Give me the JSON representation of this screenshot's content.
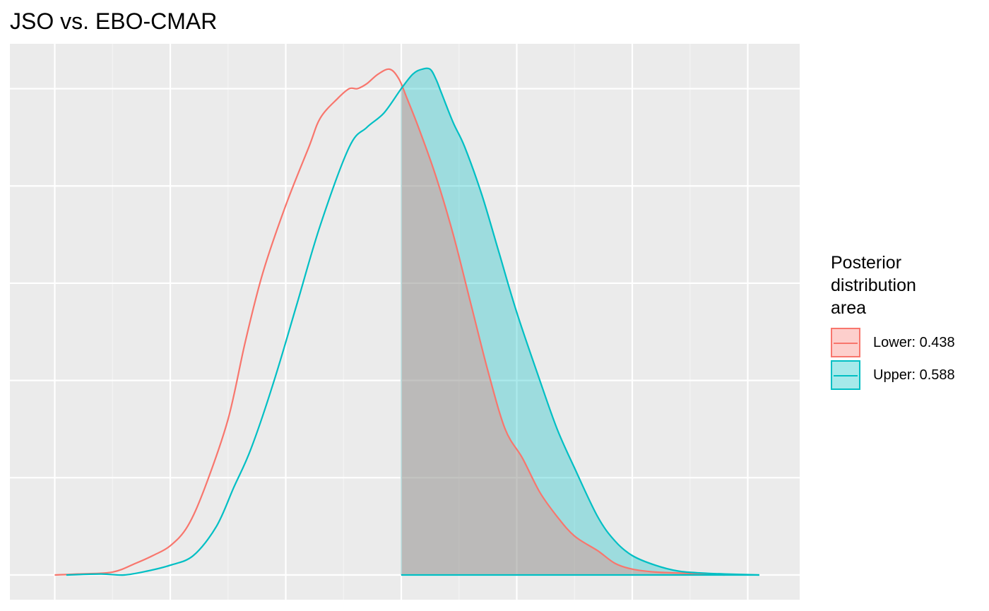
{
  "chart_data": {
    "type": "area",
    "title": "JSO vs. EBO-CMAR",
    "xlabel": "",
    "ylabel": "",
    "x_tick_labels": [],
    "y_tick_labels": [],
    "grid": true,
    "legend": {
      "title_lines": [
        "Posterior",
        "distribution",
        "area"
      ],
      "placement": "right"
    },
    "shaded_from_x": 0.0,
    "xlim": [
      -3.0,
      3.1
    ],
    "ylim": [
      -0.01,
      0.545
    ],
    "series": [
      {
        "name": "Lower: 0.438",
        "color": "#F8766D",
        "x": [
          -3.0,
          -2.8,
          -2.5,
          -2.3,
          -2.15,
          -2.0,
          -1.85,
          -1.7,
          -1.5,
          -1.35,
          -1.2,
          -1.0,
          -0.8,
          -0.7,
          -0.55,
          -0.45,
          -0.38,
          -0.3,
          -0.2,
          -0.1,
          -0.02,
          0.05,
          0.15,
          0.3,
          0.45,
          0.6,
          0.75,
          0.9,
          1.05,
          1.2,
          1.35,
          1.5,
          1.7,
          1.85,
          2.0,
          2.2,
          2.4,
          2.6,
          2.8
        ],
        "y": [
          0.0,
          0.001,
          0.003,
          0.012,
          0.02,
          0.03,
          0.05,
          0.09,
          0.16,
          0.24,
          0.31,
          0.38,
          0.44,
          0.47,
          0.49,
          0.5,
          0.5,
          0.505,
          0.515,
          0.52,
          0.51,
          0.49,
          0.46,
          0.41,
          0.35,
          0.28,
          0.21,
          0.15,
          0.12,
          0.085,
          0.06,
          0.04,
          0.025,
          0.012,
          0.006,
          0.003,
          0.002,
          0.001,
          0.0
        ]
      },
      {
        "name": "Upper: 0.588",
        "color": "#00BFC4",
        "x": [
          -2.9,
          -2.6,
          -2.4,
          -2.2,
          -2.0,
          -1.8,
          -1.6,
          -1.45,
          -1.3,
          -1.1,
          -0.9,
          -0.7,
          -0.45,
          -0.3,
          -0.15,
          0.0,
          0.1,
          0.18,
          0.25,
          0.3,
          0.35,
          0.45,
          0.55,
          0.7,
          0.85,
          1.0,
          1.2,
          1.35,
          1.5,
          1.7,
          1.85,
          2.0,
          2.2,
          2.4,
          2.6,
          2.8,
          3.1
        ],
        "y": [
          0.0,
          0.001,
          0.0,
          0.004,
          0.01,
          0.02,
          0.05,
          0.09,
          0.13,
          0.2,
          0.28,
          0.36,
          0.44,
          0.46,
          0.475,
          0.5,
          0.515,
          0.52,
          0.52,
          0.51,
          0.495,
          0.465,
          0.44,
          0.39,
          0.33,
          0.27,
          0.2,
          0.15,
          0.11,
          0.06,
          0.035,
          0.02,
          0.01,
          0.004,
          0.002,
          0.001,
          0.0
        ]
      }
    ]
  }
}
